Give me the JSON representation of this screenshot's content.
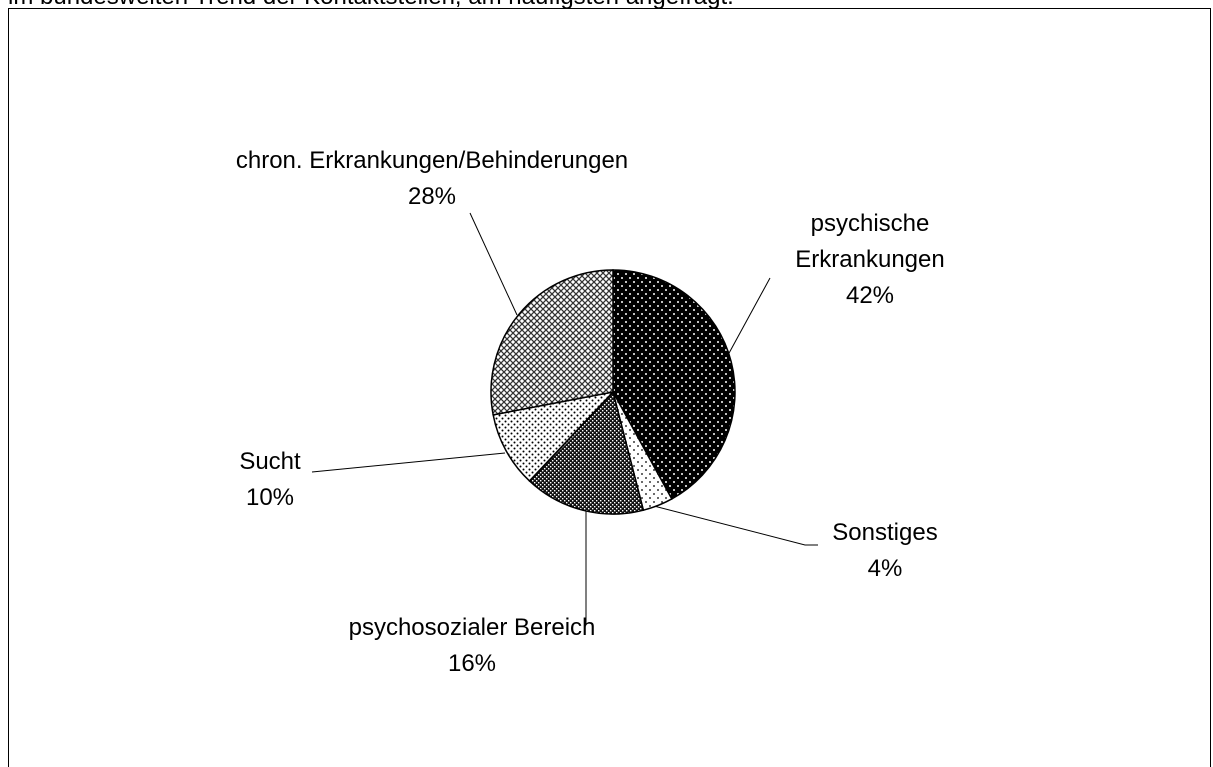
{
  "caption": "im bundesweiten Trend der Kontaktstellen, am häufigsten angefragt.",
  "chart_data": {
    "type": "pie",
    "categories": [
      "psychische Erkrankungen",
      "Sonstiges",
      "psychosozialer Bereich",
      "Sucht",
      "chron. Erkrankungen/Behinderungen"
    ],
    "values": [
      42,
      4,
      16,
      10,
      28
    ],
    "value_labels": [
      "42%",
      "4%",
      "16%",
      "10%",
      "28%"
    ]
  }
}
